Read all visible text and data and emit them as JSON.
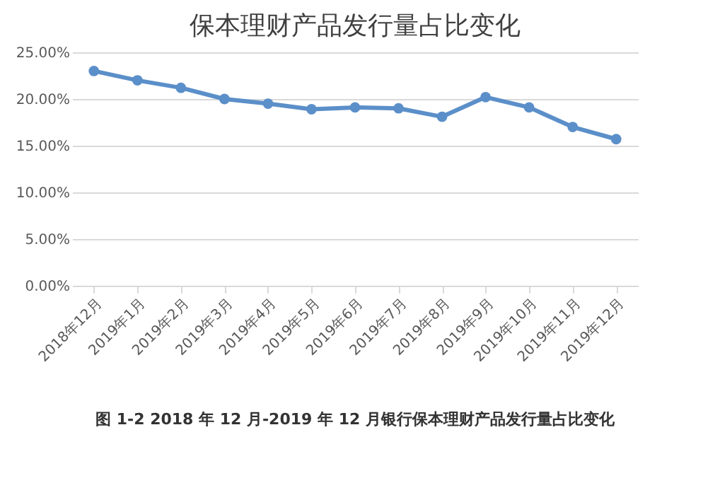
{
  "chart_data": {
    "type": "line",
    "title": "保本理财产品发行量占比变化",
    "categories": [
      "2018年12月",
      "2019年1月",
      "2019年2月",
      "2019年3月",
      "2019年4月",
      "2019年5月",
      "2019年6月",
      "2019年7月",
      "2019年8月",
      "2019年9月",
      "2019年10月",
      "2019年11月",
      "2019年12月"
    ],
    "series": [
      {
        "color": "#5b8fc9",
        "values": [
          23.0,
          22.0,
          21.2,
          20.0,
          19.5,
          18.9,
          19.1,
          19.0,
          18.1,
          20.2,
          19.1,
          17.0,
          15.7
        ]
      }
    ],
    "ylim": [
      0,
      25
    ],
    "yticks": [
      {
        "value": 0,
        "label": "0.00%"
      },
      {
        "value": 5,
        "label": "5.00%"
      },
      {
        "value": 10,
        "label": "10.00%"
      },
      {
        "value": 15,
        "label": "15.00%"
      },
      {
        "value": 20,
        "label": "20.00%"
      },
      {
        "value": 25,
        "label": "25.00%"
      }
    ],
    "grid": "y",
    "marker": "circle",
    "line_style": "solid",
    "annotations": [
      "图 1-2 2018 年 12 月-2019 年 12 月银行保本理财产品发行量占比变化"
    ]
  }
}
